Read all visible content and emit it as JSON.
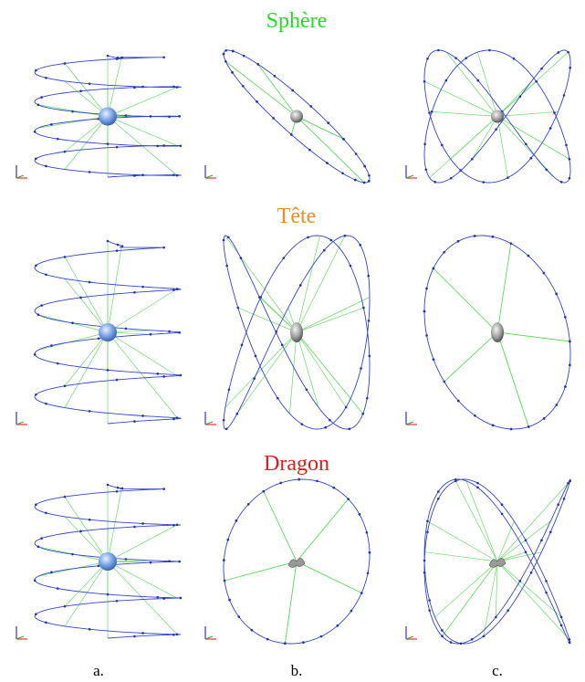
{
  "rows": [
    {
      "title": "Sphère"
    },
    {
      "title": "Tête"
    },
    {
      "title": "Dragon"
    }
  ],
  "columns": [
    "a.",
    "b.",
    "c."
  ]
}
